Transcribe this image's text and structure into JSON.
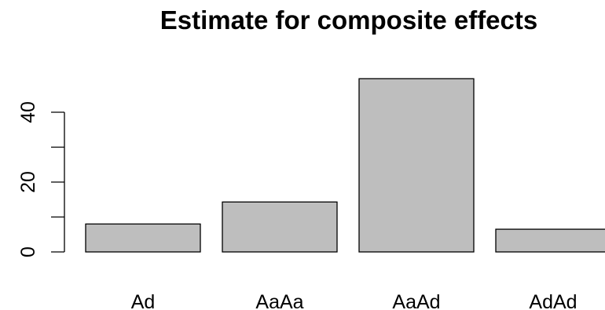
{
  "chart_data": {
    "type": "bar",
    "title": "Estimate for composite effects",
    "xlabel": "",
    "ylabel": "",
    "categories": [
      "Ad",
      "AaAa",
      "AaAd",
      "AdAd"
    ],
    "values": [
      8,
      14.3,
      49.6,
      6.5
    ],
    "yticks": [
      0,
      20,
      40
    ],
    "ylim": [
      0,
      52
    ],
    "grid": false,
    "legend": "none",
    "colors": {
      "bar_fill": "#bebebe",
      "bar_stroke": "#000000",
      "axis": "#000000",
      "text": "#000000"
    }
  }
}
